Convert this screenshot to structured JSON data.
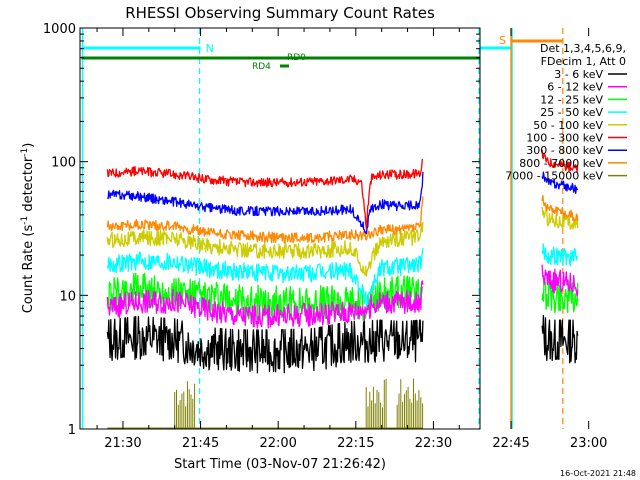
{
  "chart_data": {
    "type": "line",
    "title": "RHESSI Observing Summary Count Rates",
    "xlabel": "Start Time (03-Nov-07 21:26:42)",
    "ylabel_main": "Count Rate (s",
    "ylabel_sup1": "-1",
    "ylabel_mid": " detector",
    "ylabel_sup2": "-1",
    "ylabel_end": ")",
    "y_scale": "log",
    "ylim": [
      1,
      1000
    ],
    "xlim_minutes": [
      21.7,
      99
    ],
    "x_ticks": [
      {
        "label": "21:30",
        "minute": 30
      },
      {
        "label": "21:45",
        "minute": 45
      },
      {
        "label": "22:00",
        "minute": 60
      },
      {
        "label": "22:15",
        "minute": 75
      },
      {
        "label": "22:30",
        "minute": 90
      },
      {
        "label": "22:45",
        "minute": 105
      },
      {
        "label": "23:00",
        "minute": 120
      }
    ],
    "y_ticks": [
      {
        "label": "1",
        "value": 1
      },
      {
        "label": "10",
        "value": 10
      },
      {
        "label": "100",
        "value": 100
      },
      {
        "label": "1000",
        "value": 1000
      }
    ],
    "legend_header": [
      "Det 1,3,4,5,6,9,",
      "FDecim 1, Att 0"
    ],
    "series": [
      {
        "name": "3 - 6 keV",
        "color": "#000000",
        "segments": [
          {
            "x": [
              27,
              33,
              40,
              45,
              52,
              60,
              67,
              74,
              80,
              84,
              87.5,
              88
            ],
            "y": [
              4.5,
              4.8,
              4.6,
              4.0,
              3.8,
              3.8,
              3.9,
              4.4,
              4.5,
              4.4,
              4.5,
              5
            ]
          },
          {
            "x": [
              111,
              112,
              118
            ],
            "y": [
              5,
              4.5,
              4.5
            ]
          }
        ]
      },
      {
        "name": "6 - 12 keV",
        "color": "#ff00ff",
        "segments": [
          {
            "x": [
              27,
              33,
              40,
              45,
              52,
              60,
              67,
              74,
              77,
              80,
              84,
              87.5,
              88
            ],
            "y": [
              8,
              9,
              9,
              8,
              7,
              7,
              7.2,
              7.5,
              8,
              9,
              9,
              9,
              12
            ]
          },
          {
            "x": [
              111,
              112,
              118
            ],
            "y": [
              14,
              13,
              12
            ]
          }
        ]
      },
      {
        "name": "12 - 25 keV",
        "color": "#00ff00",
        "segments": [
          {
            "x": [
              27,
              33,
              40,
              45,
              52,
              60,
              67,
              74,
              77,
              80,
              84,
              87.5,
              88
            ],
            "y": [
              10,
              11,
              10.5,
              9.5,
              9,
              8.7,
              8.7,
              9,
              8.5,
              10,
              10.5,
              10,
              14
            ]
          },
          {
            "x": [
              111,
              112,
              118
            ],
            "y": [
              11,
              10,
              9.5
            ]
          }
        ]
      },
      {
        "name": "25 - 50 keV",
        "color": "#00ffff",
        "segments": [
          {
            "x": [
              27,
              33,
              40,
              45,
              52,
              60,
              67,
              74,
              77,
              80,
              84,
              87.5,
              88
            ],
            "y": [
              17,
              18,
              18,
              16,
              15,
              14.5,
              14.5,
              15.5,
              9,
              16,
              16.5,
              17,
              20
            ]
          },
          {
            "x": [
              111,
              112,
              118
            ],
            "y": [
              22,
              20,
              19
            ]
          }
        ]
      },
      {
        "name": "50 - 100 keV",
        "color": "#cccc00",
        "segments": [
          {
            "x": [
              27,
              33,
              40,
              45,
              52,
              60,
              67,
              74,
              77,
              80,
              84,
              87.5,
              88
            ],
            "y": [
              26,
              27,
              27,
              24,
              22,
              21.5,
              21.5,
              22.5,
              15,
              25,
              27,
              27,
              35
            ]
          },
          {
            "x": [
              111,
              112,
              118
            ],
            "y": [
              44,
              38,
              34
            ]
          }
        ]
      },
      {
        "name": "100 - 300 keV",
        "color": "#ff0000",
        "segments": [
          {
            "x": [
              27,
              33,
              40,
              45,
              52,
              60,
              67,
              74,
              76,
              77,
              78,
              80,
              84,
              87.5,
              88
            ],
            "y": [
              82,
              85,
              80,
              75,
              70,
              70,
              71,
              74,
              72,
              31,
              75,
              80,
              80,
              82,
              110
            ]
          },
          {
            "x": [
              111,
              112,
              118
            ],
            "y": [
              115,
              100,
              88
            ]
          }
        ]
      },
      {
        "name": "300 - 800 keV",
        "color": "#0000ff",
        "segments": [
          {
            "x": [
              27,
              33,
              40,
              45,
              52,
              60,
              67,
              74,
              77,
              78,
              80,
              84,
              87.5,
              88
            ],
            "y": [
              57,
              55,
              50,
              46,
              43,
              42.5,
              42.5,
              44,
              30,
              45,
              48,
              46,
              48,
              80
            ]
          },
          {
            "x": [
              111,
              112,
              118
            ],
            "y": [
              82,
              70,
              62
            ]
          }
        ]
      },
      {
        "name": "800 - 7000 keV",
        "color": "#ff8800",
        "segments": [
          {
            "x": [
              27,
              33,
              40,
              45,
              52,
              60,
              67,
              74,
              77,
              78,
              80,
              84,
              87.5,
              88
            ],
            "y": [
              33,
              34,
              33,
              30,
              28,
              27,
              27,
              28.5,
              28,
              29,
              31,
              31,
              33,
              55
            ]
          },
          {
            "x": [
              111,
              112,
              118
            ],
            "y": [
              52,
              46,
              38
            ]
          }
        ]
      },
      {
        "name": "7000 - 15000 keV",
        "color": "#808000",
        "segments": [
          {
            "x": [
              27,
              88
            ],
            "y": [
              1,
              1
            ]
          }
        ]
      }
    ],
    "annotations": [
      {
        "label": "N",
        "color": "#00ffff"
      },
      {
        "label": "S",
        "color": "#ff8800"
      },
      {
        "label": "RD0",
        "color": "#008000"
      },
      {
        "label": "RD4",
        "color": "#008000"
      }
    ],
    "bands": {
      "night_cyan": [
        {
          "start": 22,
          "end": 45
        },
        {
          "start": 105,
          "end": 122
        }
      ],
      "saa_orange": {
        "start": 105,
        "end": 115
      },
      "decim_green": {
        "start": 22,
        "end": 122
      }
    },
    "footer_date": "16-Oct-2021 21:48"
  }
}
